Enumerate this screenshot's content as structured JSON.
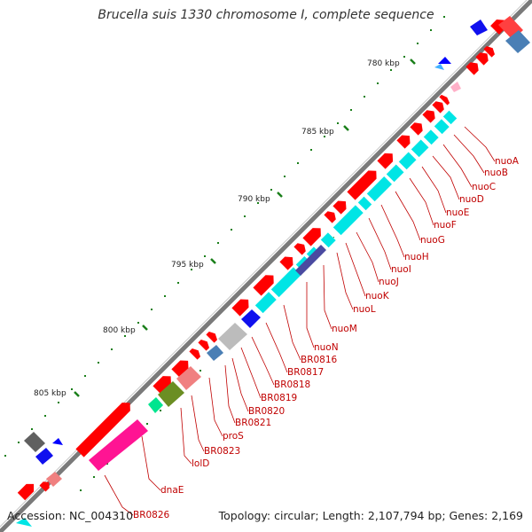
{
  "title": "Brucella suis 1330 chromosome I, complete sequence",
  "footer": {
    "accession": "Accession: NC_004310",
    "topology": "Topology: circular; Length: 2,107,794 bp; Genes: 2,169"
  },
  "tick_labels": [
    "780 kbp",
    "785 kbp",
    "790 kbp",
    "795 kbp",
    "800 kbp",
    "805 kbp"
  ],
  "gene_labels": [
    "nuoA",
    "nuoB",
    "nuoC",
    "nuoD",
    "nuoE",
    "nuoF",
    "nuoG",
    "nuoH",
    "nuoI",
    "nuoJ",
    "nuoK",
    "nuoL",
    "nuoM",
    "nuoN",
    "BR0816",
    "BR0817",
    "BR0818",
    "BR0819",
    "BR0820",
    "BR0821",
    "BR0823",
    "proS",
    "lolD",
    "dnaE",
    "BR0826"
  ],
  "colors": {
    "backbone": "#808080",
    "forward_gene": "#ff0000",
    "reverse_gene": "#00e5e5",
    "label": "#c00000",
    "tick": "#1a7f1a"
  }
}
